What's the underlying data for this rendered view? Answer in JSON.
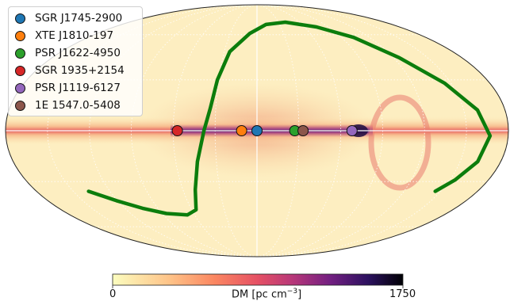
{
  "chart_data": {
    "type": "scatter",
    "projection": "mollweide",
    "title": "",
    "xlabel": "",
    "ylabel": "",
    "background_map": "galactic DM sky map",
    "colormap": "magma_r",
    "colorbar": {
      "min_label": "0",
      "max_label": "1750",
      "label_main": "DM [pc cm",
      "label_sup": "−3",
      "label_end": "]",
      "range": [
        0,
        1750
      ],
      "orientation": "horizontal",
      "placement": "bottom"
    },
    "legend_placement": "top-left",
    "series": [
      {
        "name": "SGR J1745-2900",
        "color": "#1f77b4",
        "l": 0,
        "b": 0
      },
      {
        "name": "XTE J1810-197",
        "color": "#ff7f0e",
        "l": 11,
        "b": 0
      },
      {
        "name": "PSR J1622-4950",
        "color": "#2ca02c",
        "l": -27,
        "b": 0
      },
      {
        "name": "SGR 1935+2154",
        "color": "#d62728",
        "l": 57,
        "b": 0
      },
      {
        "name": "PSR J1119-6127",
        "color": "#9467bd",
        "l": -68,
        "b": 0
      },
      {
        "name": "1E 1547.0-5408",
        "color": "#8c564b",
        "l": -33,
        "b": 0
      }
    ],
    "curve": {
      "color": "#0c7d0c",
      "points_lb": [
        [
          137.5,
          -36.0
        ],
        [
          121.0,
          -42.0
        ],
        [
          104.0,
          -47.0
        ],
        [
          86.0,
          -50.5
        ],
        [
          67.0,
          -51.5
        ],
        [
          56.0,
          -48.0
        ],
        [
          50.0,
          -35.0
        ],
        [
          44.0,
          -18.0
        ],
        [
          38.0,
          0.0
        ],
        [
          34.0,
          13.0
        ],
        [
          31.0,
          30.0
        ],
        [
          25.0,
          48.0
        ],
        [
          8.0,
          61.0
        ],
        [
          -12.0,
          68.0
        ],
        [
          -40.0,
          70.0
        ],
        [
          -75.0,
          66.0
        ],
        [
          -103.0,
          58.0
        ],
        [
          -125.0,
          44.0
        ],
        [
          -145.0,
          28.0
        ],
        [
          -160.0,
          12.0
        ],
        [
          -167.0,
          -3.0
        ],
        [
          -163.0,
          -18.0
        ],
        [
          -154.0,
          -29.0
        ],
        [
          -145.5,
          -36.0
        ]
      ]
    },
    "grid": true
  }
}
